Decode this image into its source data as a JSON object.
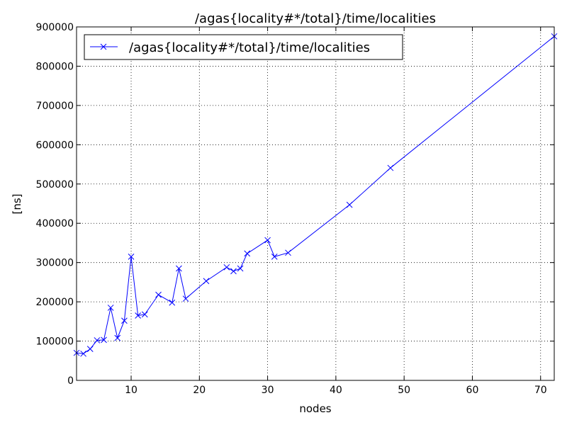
{
  "chart_data": {
    "type": "line",
    "title": "/agas{locality#*/total}/time/localities",
    "xlabel": "nodes",
    "ylabel": "[ns]",
    "xlim": [
      2,
      72
    ],
    "ylim": [
      0,
      900000
    ],
    "grid": true,
    "legend_position": "top-left",
    "x_ticks": [
      10,
      20,
      30,
      40,
      50,
      60,
      70
    ],
    "y_ticks": [
      0,
      100000,
      200000,
      300000,
      400000,
      500000,
      600000,
      700000,
      800000,
      900000
    ],
    "series": [
      {
        "name": "/agas{locality#*/total}/time/localities",
        "color": "#0000ff",
        "marker": "x",
        "x": [
          2,
          3,
          4,
          5,
          6,
          7,
          8,
          9,
          10,
          11,
          12,
          14,
          16,
          17,
          18,
          21,
          24,
          25,
          26,
          27,
          30,
          31,
          33,
          42,
          48,
          72
        ],
        "y": [
          70000,
          68000,
          80000,
          102000,
          103000,
          185000,
          108000,
          152000,
          315000,
          165000,
          168000,
          218000,
          198000,
          285000,
          208000,
          253000,
          288000,
          278000,
          285000,
          323000,
          357000,
          315000,
          325000,
          447000,
          541000,
          876000
        ]
      }
    ]
  }
}
